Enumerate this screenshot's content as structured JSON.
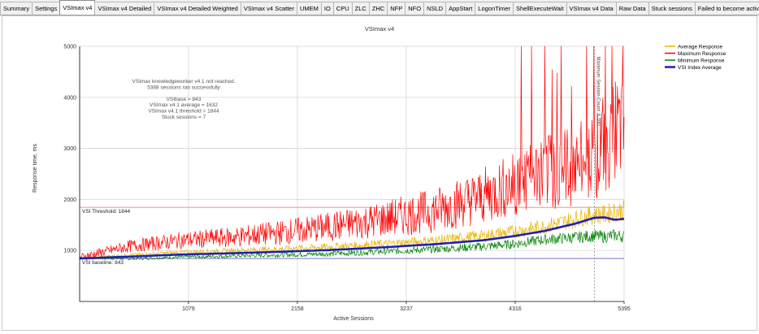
{
  "tabs": [
    {
      "label": "Summary",
      "active": false
    },
    {
      "label": "Settings",
      "active": false
    },
    {
      "label": "VSImax v4",
      "active": true
    },
    {
      "label": "VSImax v4 Detailed",
      "active": false
    },
    {
      "label": "VSImax v4 Detailed Weighted",
      "active": false
    },
    {
      "label": "VSImax v4 Scatter",
      "active": false
    },
    {
      "label": "UMEM",
      "active": false
    },
    {
      "label": "IO",
      "active": false
    },
    {
      "label": "CPU",
      "active": false
    },
    {
      "label": "ZLC",
      "active": false
    },
    {
      "label": "ZHC",
      "active": false
    },
    {
      "label": "NFP",
      "active": false
    },
    {
      "label": "NFO",
      "active": false
    },
    {
      "label": "NSLD",
      "active": false
    },
    {
      "label": "AppStart",
      "active": false
    },
    {
      "label": "LogonTimer",
      "active": false
    },
    {
      "label": "ShellExecuteWait",
      "active": false
    },
    {
      "label": "VSImax v4 Data",
      "active": false
    },
    {
      "label": "Raw Data",
      "active": false
    },
    {
      "label": "Stuck sessions",
      "active": false
    },
    {
      "label": "Failed to become active",
      "active": false
    }
  ],
  "chart_data": {
    "type": "line",
    "title": "VSImax v4",
    "xlabel": "Active Sessions",
    "ylabel": "Response time, ms",
    "xlim": [
      1,
      5395
    ],
    "ylim": [
      0,
      5000
    ],
    "x_ticks": [
      1079,
      2158,
      3237,
      4316,
      5395
    ],
    "y_ticks": [
      1000,
      2000,
      3000,
      4000,
      5000
    ],
    "grid": true,
    "legend": "top-right",
    "series": [
      {
        "name": "Average Response",
        "color": "#e8b400",
        "x": [
          1,
          500,
          1000,
          1500,
          2000,
          2500,
          3000,
          3500,
          4000,
          4300,
          4600,
          4900,
          5100,
          5200,
          5300,
          5395
        ],
        "y": [
          843,
          900,
          950,
          980,
          1010,
          1050,
          1100,
          1160,
          1250,
          1330,
          1420,
          1560,
          1650,
          1640,
          1700,
          1720
        ]
      },
      {
        "name": "Maximum Response",
        "color": "#ff0000",
        "x": [
          1,
          500,
          1000,
          1500,
          2000,
          2500,
          3000,
          3500,
          4000,
          4300,
          4600,
          4900,
          5100,
          5200,
          5300,
          5395
        ],
        "y": [
          843,
          1050,
          1150,
          1200,
          1280,
          1380,
          1500,
          1650,
          1900,
          2100,
          2300,
          2400,
          2600,
          2800,
          3000,
          2900
        ]
      },
      {
        "name": "Minimum Response",
        "color": "#008000",
        "x": [
          1,
          500,
          1000,
          1500,
          2000,
          2500,
          3000,
          3500,
          4000,
          4300,
          4600,
          4900,
          5100,
          5200,
          5300,
          5395
        ],
        "y": [
          843,
          830,
          860,
          880,
          900,
          920,
          960,
          1000,
          1050,
          1100,
          1180,
          1220,
          1250,
          1230,
          1260,
          1240
        ]
      },
      {
        "name": "VSI Index Average",
        "color": "#1f1fb4",
        "x": [
          1,
          500,
          1000,
          1500,
          2000,
          2500,
          3000,
          3500,
          4000,
          4300,
          4600,
          4900,
          5100,
          5200,
          5300,
          5395
        ],
        "y": [
          843,
          880,
          920,
          945,
          975,
          1010,
          1060,
          1120,
          1200,
          1280,
          1380,
          1520,
          1640,
          1650,
          1600,
          1620
        ]
      }
    ],
    "reference_lines": [
      {
        "label": "VSI Threshold: 1844",
        "value": 1844,
        "color": "#f08080"
      },
      {
        "label": "VSI baseline: 843",
        "value": 843,
        "color": "#6060c0"
      }
    ],
    "marker_line": {
      "x": 5100,
      "label": "Maximum Session Count: 5,100"
    },
    "annotations": [
      "VSImax knowledgeworker v4.1 not reached.",
      "5388 sessions ran successfully",
      "",
      "VSIbase = 843",
      "VSImax v4.1 average = 1632",
      "VSImax v4.1 threshold = 1844",
      "Stuck sessions = 7"
    ]
  }
}
